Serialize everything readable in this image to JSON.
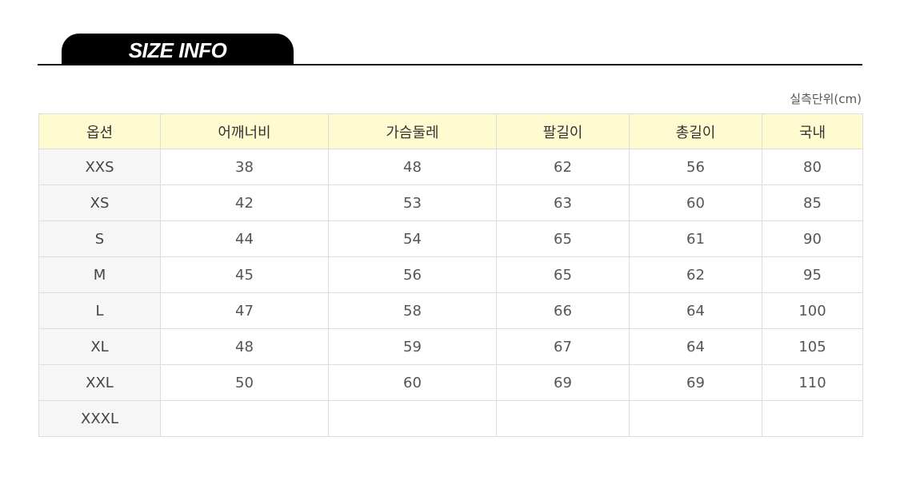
{
  "title": "SIZE INFO",
  "unit_note": "실측단위(cm)",
  "table": {
    "headers": [
      "옵션",
      "어깨너비",
      "가슴둘레",
      "팔길이",
      "총길이",
      "국내"
    ],
    "rows": [
      [
        "XXS",
        "38",
        "48",
        "62",
        "56",
        "80"
      ],
      [
        "XS",
        "42",
        "53",
        "63",
        "60",
        "85"
      ],
      [
        "S",
        "44",
        "54",
        "65",
        "61",
        "90"
      ],
      [
        "M",
        "45",
        "56",
        "65",
        "62",
        "95"
      ],
      [
        "L",
        "47",
        "58",
        "66",
        "64",
        "100"
      ],
      [
        "XL",
        "48",
        "59",
        "67",
        "64",
        "105"
      ],
      [
        "XXL",
        "50",
        "60",
        "69",
        "69",
        "110"
      ],
      [
        "XXXL",
        "",
        "",
        "",
        "",
        ""
      ]
    ]
  }
}
